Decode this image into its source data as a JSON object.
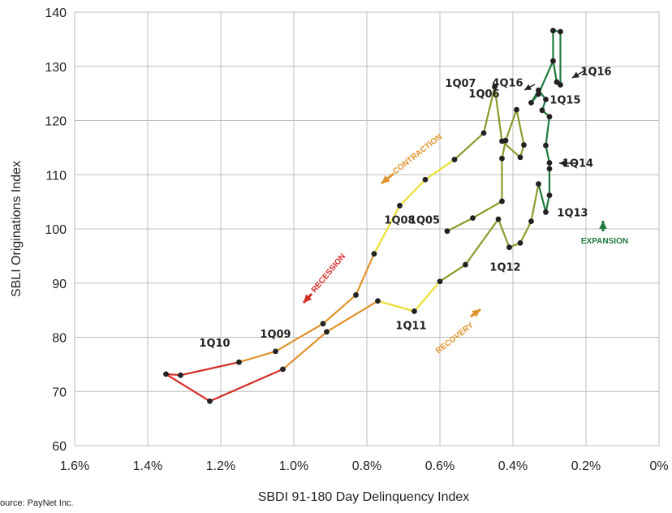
{
  "chart_data": {
    "type": "line",
    "title": "",
    "xlabel": "SBDI 91-180 Day Delinquency Index",
    "ylabel": "SBLI Originations Index",
    "xlim": [
      1.6,
      0.0
    ],
    "ylim": [
      60,
      140
    ],
    "x_ticks": [
      1.6,
      1.4,
      1.2,
      1.0,
      0.8,
      0.6,
      0.4,
      0.2,
      0.0
    ],
    "x_tick_labels": [
      "1.6%",
      "1.4%",
      "1.2%",
      "1.0%",
      "0.8%",
      "0.6%",
      "0.4%",
      "0.2%",
      "0%"
    ],
    "y_ticks": [
      60,
      70,
      80,
      90,
      100,
      110,
      120,
      130,
      140
    ],
    "y_tick_labels": [
      "60",
      "70",
      "80",
      "90",
      "100",
      "110",
      "120",
      "130",
      "140"
    ],
    "grid": true,
    "segments": [
      {
        "color": "#8a9a2a",
        "points": [
          [
            0.58,
            99.6
          ],
          [
            0.51,
            102.0
          ],
          [
            0.43,
            105.1
          ],
          [
            0.43,
            113.0
          ],
          [
            0.42,
            116.3
          ],
          [
            0.39,
            122.0
          ],
          [
            0.37,
            115.5
          ],
          [
            0.38,
            113.2
          ],
          [
            0.43,
            116.2
          ],
          [
            0.45,
            126.2
          ]
        ]
      },
      {
        "color": "#8a9a2a",
        "points": [
          [
            0.45,
            126.2
          ],
          [
            0.48,
            117.7
          ],
          [
            0.56,
            112.8
          ]
        ]
      },
      {
        "color": "#e8df30",
        "points": [
          [
            0.56,
            112.8
          ],
          [
            0.64,
            109.1
          ],
          [
            0.71,
            104.3
          ],
          [
            0.78,
            95.4
          ]
        ]
      },
      {
        "color": "#e0922a",
        "points": [
          [
            0.78,
            95.4
          ],
          [
            0.83,
            87.8
          ],
          [
            0.92,
            82.5
          ],
          [
            1.05,
            77.4
          ],
          [
            1.15,
            75.4
          ]
        ]
      },
      {
        "color": "#d42b24",
        "points": [
          [
            1.15,
            75.4
          ],
          [
            1.31,
            73.0
          ],
          [
            1.35,
            73.2
          ],
          [
            1.23,
            68.2
          ],
          [
            1.03,
            74.1
          ]
        ]
      },
      {
        "color": "#e0922a",
        "points": [
          [
            1.03,
            74.1
          ],
          [
            0.91,
            81.0
          ],
          [
            0.77,
            86.7
          ]
        ]
      },
      {
        "color": "#e8df30",
        "points": [
          [
            0.77,
            86.7
          ],
          [
            0.67,
            84.8
          ],
          [
            0.6,
            90.3
          ]
        ]
      },
      {
        "color": "#8a9a2a",
        "points": [
          [
            0.6,
            90.3
          ],
          [
            0.53,
            93.4
          ],
          [
            0.44,
            101.8
          ],
          [
            0.41,
            96.6
          ],
          [
            0.38,
            97.4
          ],
          [
            0.35,
            101.4
          ],
          [
            0.33,
            108.3
          ]
        ]
      },
      {
        "color": "#1e7a3c",
        "points": [
          [
            0.33,
            108.3
          ],
          [
            0.31,
            103.1
          ],
          [
            0.3,
            106.2
          ],
          [
            0.3,
            111.1
          ],
          [
            0.3,
            112.2
          ],
          [
            0.31,
            115.4
          ],
          [
            0.3,
            120.7
          ],
          [
            0.32,
            121.9
          ],
          [
            0.31,
            123.9
          ],
          [
            0.33,
            125.6
          ],
          [
            0.35,
            123.3
          ],
          [
            0.33,
            124.9
          ],
          [
            0.29,
            131.0
          ],
          [
            0.28,
            127.1
          ],
          [
            0.27,
            126.6
          ],
          [
            0.27,
            136.4
          ],
          [
            0.29,
            136.6
          ],
          [
            0.29,
            131.0
          ]
        ]
      }
    ],
    "quarter_labels": [
      {
        "text": "1Q05",
        "x": 0.58,
        "y": 99.6
      },
      {
        "text": "1Q06",
        "x": 0.43,
        "y": 124.9
      },
      {
        "text": "1Q07",
        "x": 0.45,
        "y": 126.2
      },
      {
        "text": "1Q08",
        "x": 0.71,
        "y": 104.3
      },
      {
        "text": "1Q09",
        "x": 1.05,
        "y": 77.4
      },
      {
        "text": "1Q10",
        "x": 1.15,
        "y": 75.4
      },
      {
        "text": "1Q11",
        "x": 0.67,
        "y": 84.8
      },
      {
        "text": "1Q12",
        "x": 0.41,
        "y": 96.6
      },
      {
        "text": "1Q13",
        "x": 0.31,
        "y": 103.1
      },
      {
        "text": "1Q14",
        "x": 0.3,
        "y": 112.2
      },
      {
        "text": "1Q15",
        "x": 0.31,
        "y": 123.9
      },
      {
        "text": "1Q16",
        "x": 0.27,
        "y": 126.6
      },
      {
        "text": "4Q16",
        "x": 0.35,
        "y": 123.3
      }
    ],
    "phases": [
      {
        "text": "RECESSION",
        "color": "#d42b24"
      },
      {
        "text": "CONTRACTION",
        "color": "#e0922a"
      },
      {
        "text": "RECOVERY",
        "color": "#e0922a"
      },
      {
        "text": "EXPANSION",
        "color": "#1e7a3c"
      }
    ],
    "marker_color": "#222222"
  },
  "source_text": "ource: PayNet Inc."
}
